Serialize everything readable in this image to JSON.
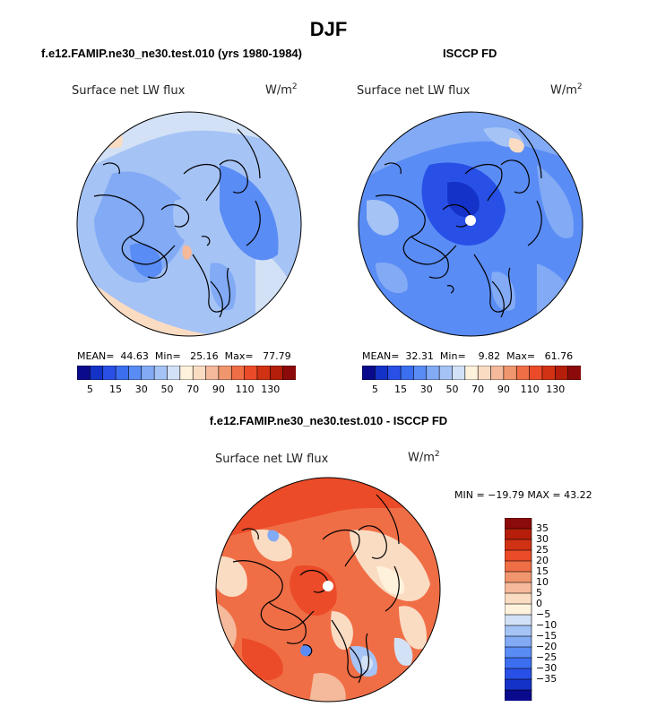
{
  "figure_title": "DJF",
  "panels": [
    {
      "title": "f.e12.FAMIP.ne30_ne30.test.010 (yrs 1980-1984)",
      "variable": "Surface net LW flux",
      "units": "W/m",
      "units_exp": "2",
      "stats": {
        "mean_label": "MEAN=",
        "mean": "44.63",
        "min_label": "Min=",
        "min": "25.16",
        "max_label": "Max=",
        "max": "77.79"
      }
    },
    {
      "title": "ISCCP FD",
      "variable": "Surface net LW flux",
      "units": "W/m",
      "units_exp": "2",
      "stats": {
        "mean_label": "MEAN=",
        "mean": "32.31",
        "min_label": "Min=",
        "min": "9.82",
        "max_label": "Max=",
        "max": "61.76"
      }
    }
  ],
  "diff_panel": {
    "title": "f.e12.FAMIP.ne30_ne30.test.010 - ISCCP FD",
    "variable": "Surface net LW flux",
    "units": "W/m",
    "units_exp": "2",
    "stats_text": "MIN = −19.79 MAX =  43.22"
  },
  "colorbar_main": {
    "tick_labels": [
      "5",
      "15",
      "30",
      "50",
      "70",
      "90",
      "110",
      "130"
    ],
    "colors": [
      "#0a0a8c",
      "#1432c8",
      "#2850e6",
      "#3c6ef0",
      "#5a8cf5",
      "#82aaf5",
      "#a5c3f5",
      "#d2e1f5",
      "#fff2dc",
      "#fadcc3",
      "#f5b99b",
      "#f0966e",
      "#f06e46",
      "#eb4b28",
      "#d23214",
      "#b41e0a",
      "#8c0a0a"
    ]
  },
  "colorbar_diff": {
    "tick_labels": [
      "35",
      "30",
      "25",
      "20",
      "15",
      "10",
      "5",
      "0",
      "−5",
      "−10",
      "−15",
      "−20",
      "−25",
      "−30",
      "−35"
    ],
    "colors": [
      "#8c0a0a",
      "#b41e0a",
      "#d23214",
      "#eb4b28",
      "#f06e46",
      "#f0966e",
      "#f5b99b",
      "#fadcc3",
      "#fff2dc",
      "#d2e1f5",
      "#a5c3f5",
      "#82aaf5",
      "#5a8cf5",
      "#3c6ef0",
      "#2850e6",
      "#1432c8",
      "#0a0a8c"
    ]
  }
}
